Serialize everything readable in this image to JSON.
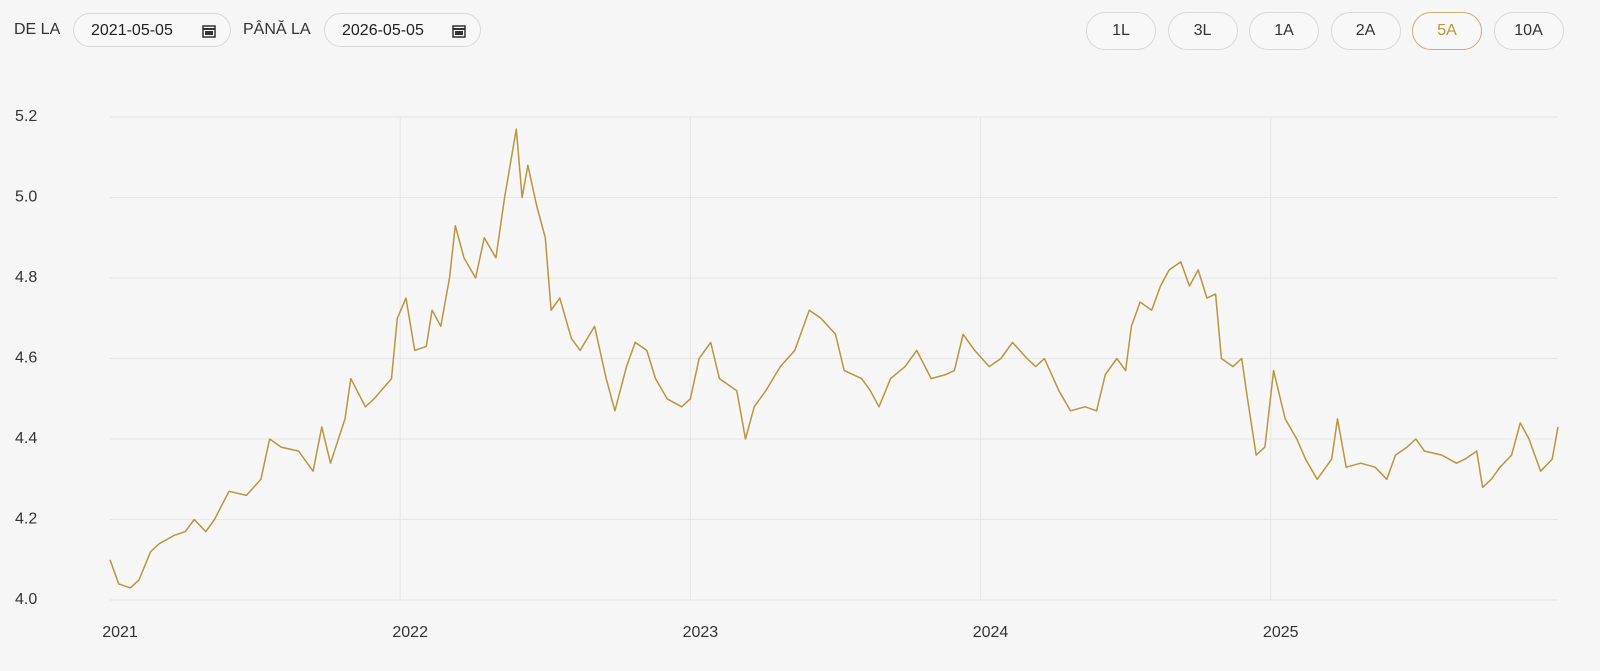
{
  "controls": {
    "from_label": "DE LA",
    "from_date": "2021-05-05",
    "to_label": "PÂNĂ LA",
    "to_date": "2026-05-05",
    "ranges": [
      {
        "label": "1L"
      },
      {
        "label": "3L"
      },
      {
        "label": "1A"
      },
      {
        "label": "2A"
      },
      {
        "label": "5A",
        "active": true
      },
      {
        "label": "10A"
      }
    ]
  },
  "chart_data": {
    "type": "line",
    "x": [
      2021.34,
      2021.37,
      2021.41,
      2021.44,
      2021.48,
      2021.51,
      2021.56,
      2021.6,
      2021.63,
      2021.67,
      2021.7,
      2021.75,
      2021.81,
      2021.86,
      2021.89,
      2021.93,
      2021.99,
      2022.04,
      2022.07,
      2022.1,
      2022.15,
      2022.17,
      2022.22,
      2022.25,
      2022.31,
      2022.33,
      2022.36,
      2022.39,
      2022.43,
      2022.45,
      2022.48,
      2022.51,
      2022.53,
      2022.56,
      2022.6,
      2022.63,
      2022.67,
      2022.7,
      2022.74,
      2022.76,
      2022.78,
      2022.81,
      2022.84,
      2022.86,
      2022.89,
      2022.93,
      2022.96,
      2023.01,
      2023.05,
      2023.08,
      2023.12,
      2023.15,
      2023.19,
      2023.22,
      2023.26,
      2023.31,
      2023.34,
      2023.37,
      2023.41,
      2023.44,
      2023.5,
      2023.53,
      2023.56,
      2023.6,
      2023.65,
      2023.7,
      2023.75,
      2023.79,
      2023.84,
      2023.87,
      2023.93,
      2023.96,
      2023.99,
      2024.03,
      2024.08,
      2024.12,
      2024.17,
      2024.22,
      2024.25,
      2024.28,
      2024.32,
      2024.37,
      2024.41,
      2024.45,
      2024.5,
      2024.53,
      2024.56,
      2024.61,
      2024.65,
      2024.7,
      2024.74,
      2024.77,
      2024.81,
      2024.84,
      2024.86,
      2024.89,
      2024.93,
      2024.96,
      2024.99,
      2025.03,
      2025.06,
      2025.09,
      2025.12,
      2025.15,
      2025.17,
      2025.21,
      2025.24,
      2025.26,
      2025.29,
      2025.32,
      2025.35,
      2025.39,
      2025.43,
      2025.46,
      2025.5,
      2025.55,
      2025.57,
      2025.6,
      2025.65,
      2025.7,
      2025.74,
      2025.77,
      2025.81,
      2025.84,
      2025.87,
      2025.93,
      2025.98,
      2026.01,
      2026.05,
      2026.07,
      2026.1,
      2026.13,
      2026.17,
      2026.2,
      2026.23,
      2026.27,
      2026.31,
      2026.33
    ],
    "series": [
      {
        "color": "#b8963e",
        "values": [
          4.1,
          4.04,
          4.03,
          4.05,
          4.12,
          4.14,
          4.16,
          4.17,
          4.2,
          4.17,
          4.2,
          4.27,
          4.26,
          4.3,
          4.4,
          4.38,
          4.37,
          4.32,
          4.43,
          4.34,
          4.45,
          4.55,
          4.48,
          4.5,
          4.55,
          4.7,
          4.75,
          4.62,
          4.63,
          4.72,
          4.68,
          4.8,
          4.93,
          4.85,
          4.8,
          4.9,
          4.85,
          5.0,
          5.17,
          5.0,
          5.08,
          4.98,
          4.9,
          4.72,
          4.75,
          4.65,
          4.62,
          4.68,
          4.55,
          4.47,
          4.58,
          4.64,
          4.62,
          4.55,
          4.5,
          4.48,
          4.5,
          4.6,
          4.64,
          4.55,
          4.52,
          4.4,
          4.48,
          4.52,
          4.58,
          4.62,
          4.72,
          4.7,
          4.66,
          4.57,
          4.55,
          4.52,
          4.48,
          4.55,
          4.58,
          4.62,
          4.55,
          4.56,
          4.57,
          4.66,
          4.62,
          4.58,
          4.6,
          4.64,
          4.6,
          4.58,
          4.6,
          4.52,
          4.47,
          4.48,
          4.47,
          4.56,
          4.6,
          4.57,
          4.68,
          4.74,
          4.72,
          4.78,
          4.82,
          4.84,
          4.78,
          4.82,
          4.75,
          4.76,
          4.6,
          4.58,
          4.6,
          4.5,
          4.36,
          4.38,
          4.57,
          4.45,
          4.4,
          4.35,
          4.3,
          4.35,
          4.45,
          4.33,
          4.34,
          4.33,
          4.3,
          4.36,
          4.38,
          4.4,
          4.37,
          4.36,
          4.34,
          4.35,
          4.37,
          4.28,
          4.3,
          4.33,
          4.36,
          4.44,
          4.4,
          4.32,
          4.35,
          4.43
        ]
      }
    ],
    "xlim": [
      2021.34,
      2026.33
    ],
    "xticks": [
      {
        "value": 2021.34,
        "label": "2021"
      },
      {
        "value": 2022.34,
        "label": "2022"
      },
      {
        "value": 2023.34,
        "label": "2023"
      },
      {
        "value": 2024.34,
        "label": "2024"
      },
      {
        "value": 2025.34,
        "label": "2025"
      }
    ],
    "ylim": [
      4,
      5.2
    ],
    "yticks": [
      {
        "value": 4,
        "label": "4.0"
      },
      4.2,
      4.4,
      4.6,
      4.8,
      {
        "value": 5,
        "label": "5.0"
      },
      5.2
    ],
    "grid": true
  }
}
